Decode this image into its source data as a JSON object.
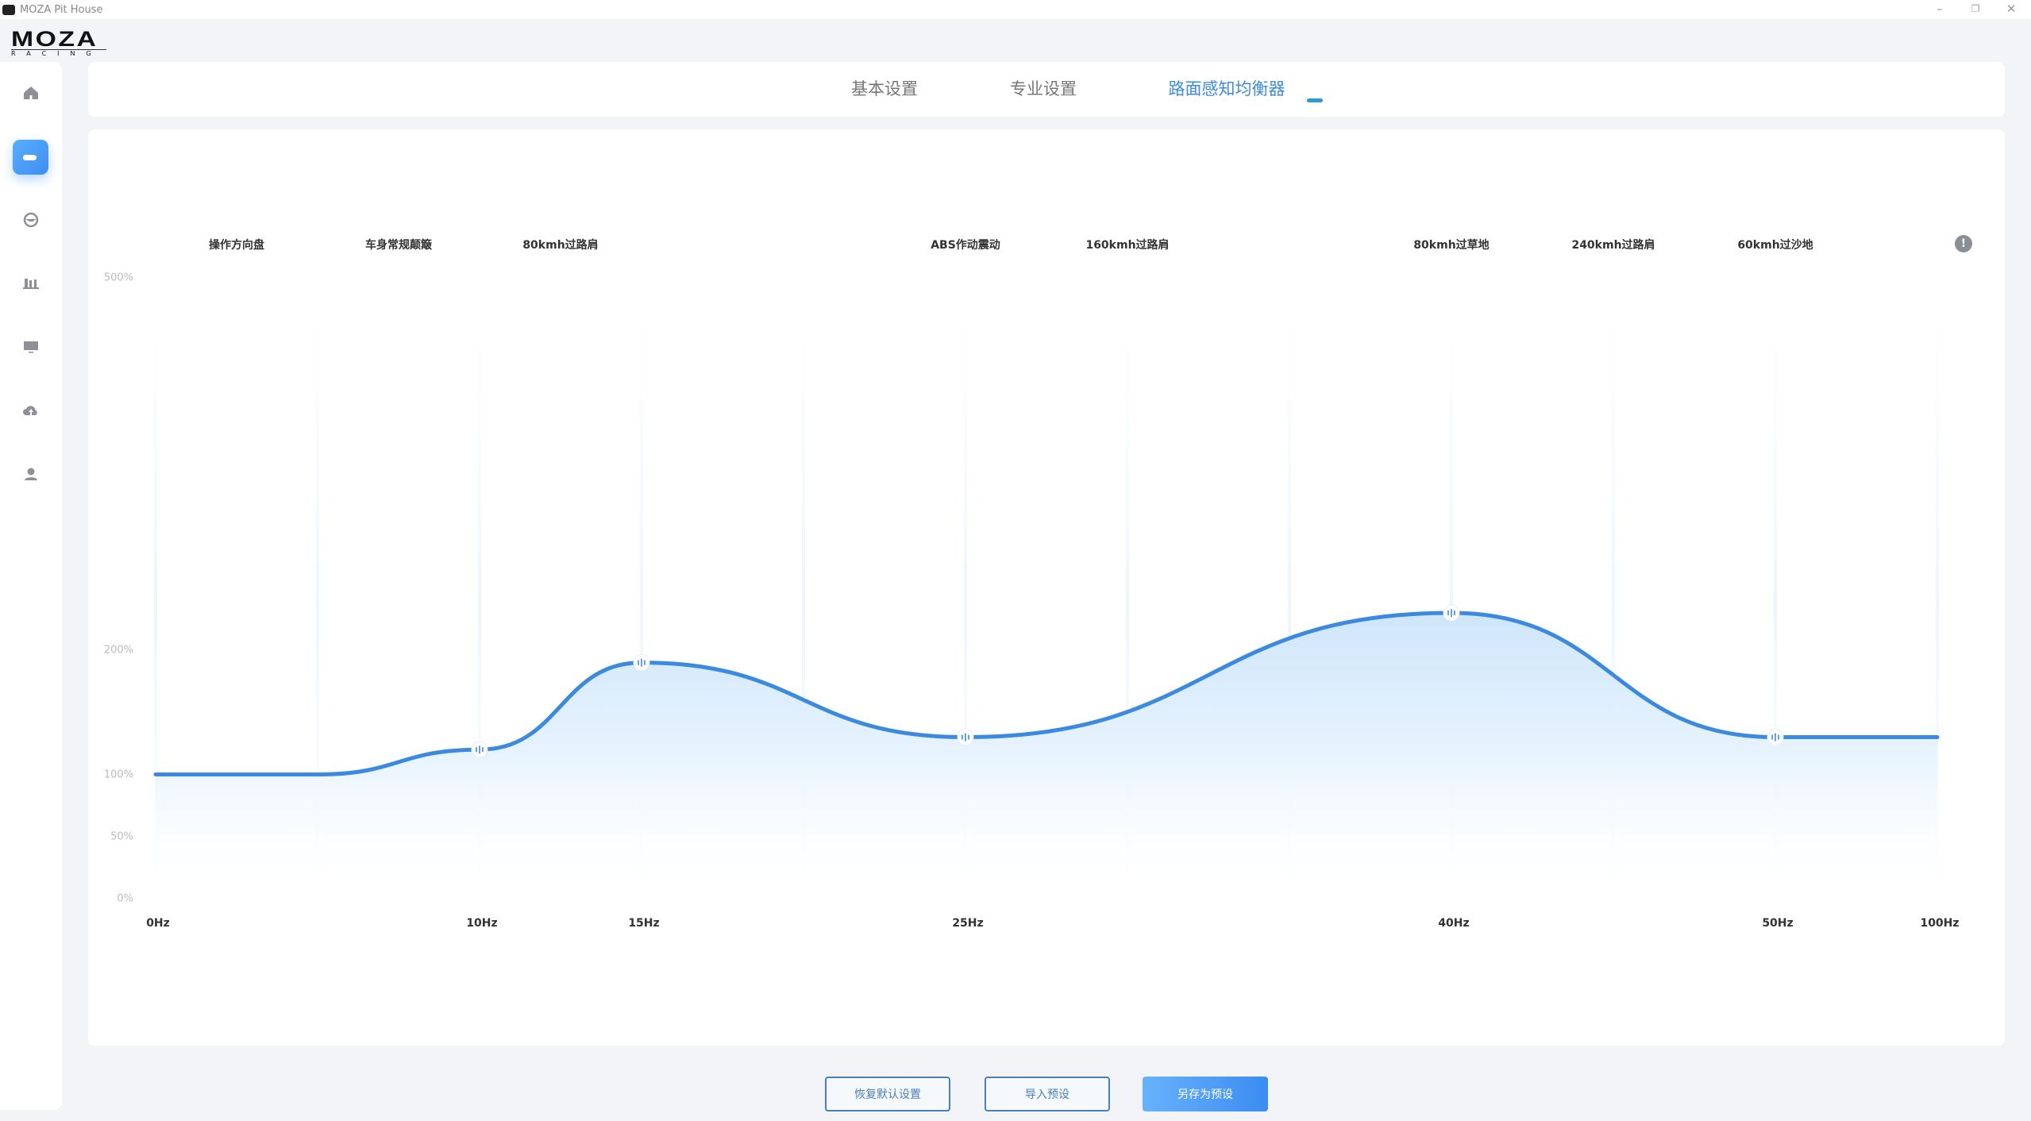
{
  "window": {
    "title": "MOZA Pit House",
    "logo_text": "MOZA",
    "logo_sub": "RACING"
  },
  "sidebar": {
    "items": [
      {
        "icon": "home-icon"
      },
      {
        "icon": "wheelbase-icon",
        "active": true
      },
      {
        "icon": "steering-wheel-icon"
      },
      {
        "icon": "pedals-icon"
      },
      {
        "icon": "dashboard-display-icon"
      },
      {
        "icon": "cloud-upload-icon"
      },
      {
        "icon": "user-icon"
      }
    ]
  },
  "tabs": [
    {
      "label": "基本设置"
    },
    {
      "label": "专业设置"
    },
    {
      "label": "路面感知均衡器",
      "active": true
    }
  ],
  "accent_color": "#3b8ae0",
  "chart_data": {
    "type": "area",
    "band_labels": [
      "操作方向盘",
      "车身常规颠簸",
      "80kmh过路肩",
      "ABS作动震动",
      "160kmh过路肩",
      "80kmh过草地",
      "240kmh过路肩",
      "60kmh过沙地"
    ],
    "x_ticks": [
      "0Hz",
      "10Hz",
      "15Hz",
      "25Hz",
      "40Hz",
      "50Hz",
      "100Hz"
    ],
    "y_ticks": [
      "0%",
      "50%",
      "100%",
      "200%",
      "500%"
    ],
    "ylim": [
      0,
      500
    ],
    "grid": "vertical",
    "points": [
      {
        "hz": 0,
        "percent": 100
      },
      {
        "hz": 10,
        "percent": 120,
        "handle": true
      },
      {
        "hz": 15,
        "percent": 190,
        "handle": true
      },
      {
        "hz": 25,
        "percent": 130,
        "handle": true
      },
      {
        "hz": 40,
        "percent": 230,
        "handle": true
      },
      {
        "hz": 50,
        "percent": 130,
        "handle": true
      },
      {
        "hz": 100,
        "percent": 130
      }
    ],
    "info_icon": "info-icon"
  },
  "buttons": {
    "reset": "恢复默认设置",
    "import": "导入预设",
    "save_as": "另存为预设"
  }
}
